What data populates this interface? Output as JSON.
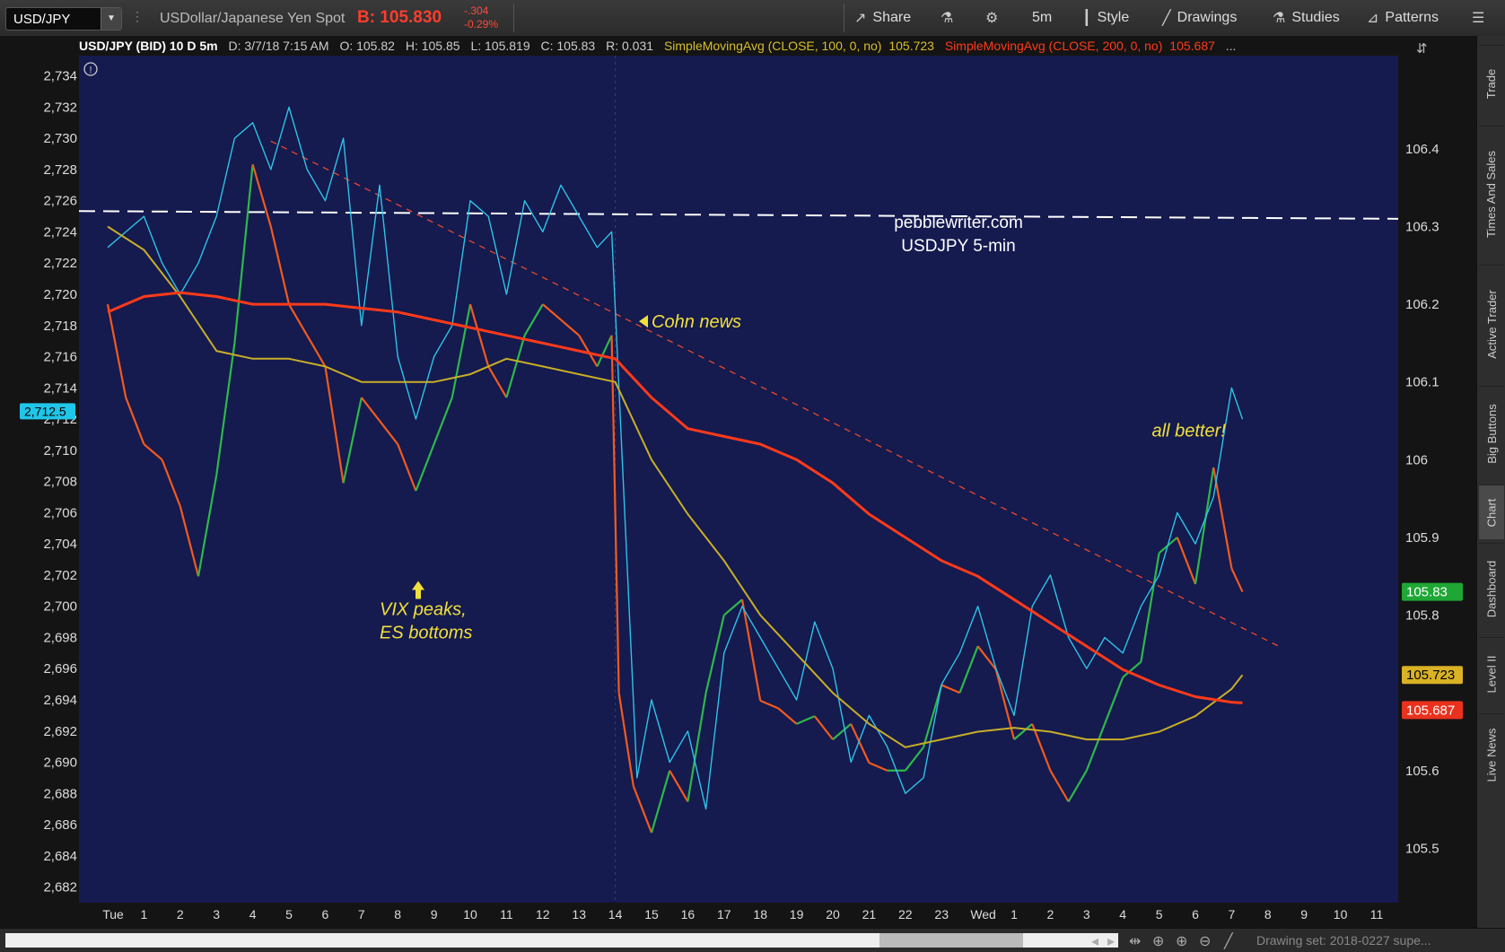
{
  "toolbar": {
    "symbol": "USD/JPY",
    "description": "USDollar/Japanese Yen Spot",
    "bid": "B: 105.830",
    "change": "-.304",
    "change_pct": "-0.29%",
    "share_label": "Share",
    "timeframe_label": "5m",
    "style_label": "Style",
    "drawings_label": "Drawings",
    "studies_label": "Studies",
    "patterns_label": "Patterns"
  },
  "header": {
    "title": "USD/JPY (BID) 10 D 5m",
    "date": "D: 3/7/18 7:15 AM",
    "open": "O: 105.82",
    "high": "H: 105.85",
    "low": "L: 105.819",
    "close": "C: 105.83",
    "range": "R: 0.031",
    "sma100_label": "SimpleMovingAvg (CLOSE, 100, 0, no)",
    "sma100_value": "105.723",
    "sma200_label": "SimpleMovingAvg (CLOSE, 200, 0, no)",
    "sma200_value": "105.687",
    "more": "..."
  },
  "right_tabs": [
    "Trade",
    "Times And Sales",
    "Active Trader",
    "Big Buttons",
    "Chart",
    "Dashboard",
    "Level II",
    "Live News"
  ],
  "bottom": {
    "drawing_set": "Drawing set: 2018-0227 supe..."
  },
  "colors": {
    "plot_bg": "#151A4F",
    "up_candle": "#2DB84A",
    "down_candle": "#F25A1E",
    "es_line": "#2EC3E6",
    "sma100": "#C9AE27",
    "sma200": "#FF3A1A",
    "trendline": "#E84A2A",
    "annotation": "#F0E03A",
    "price_badge_green": "#1FA735",
    "price_badge_gold": "#D9B225",
    "price_badge_red": "#E8321E",
    "left_badge": "#20C6E8"
  },
  "chart_data": {
    "type": "line",
    "title": "USD/JPY (BID) 10 D 5m",
    "x_tick_labels": [
      "Tue",
      "1",
      "2",
      "3",
      "4",
      "5",
      "6",
      "7",
      "8",
      "9",
      "10",
      "11",
      "12",
      "13",
      "14",
      "15",
      "16",
      "17",
      "18",
      "19",
      "20",
      "21",
      "22",
      "23",
      "Wed",
      "1",
      "2",
      "3",
      "4",
      "5",
      "6",
      "7",
      "8",
      "9",
      "10",
      "11"
    ],
    "right_axis": {
      "ylim": [
        105.43,
        106.52
      ],
      "ticks": [
        "106.4",
        "106.3",
        "106.2",
        "106.1",
        "106",
        "105.9",
        "105.8",
        "105.6",
        "105.5"
      ]
    },
    "left_axis": {
      "ylim": [
        2681.0,
        2735.3
      ],
      "ticks": [
        "2,734",
        "2,732",
        "2,730",
        "2,728",
        "2,726",
        "2,724",
        "2,722",
        "2,720",
        "2,718",
        "2,716",
        "2,714",
        "2,712",
        "2,710",
        "2,708",
        "2,706",
        "2,704",
        "2,702",
        "2,700",
        "2,698",
        "2,696",
        "2,694",
        "2,692",
        "2,690",
        "2,688",
        "2,686",
        "2,684",
        "2,682"
      ]
    },
    "series": [
      {
        "name": "USD/JPY (BID)",
        "axis": "right",
        "x": [
          0,
          0.5,
          1,
          1.5,
          2,
          2.5,
          3,
          3.5,
          4,
          4.5,
          5,
          5.5,
          6,
          6.5,
          7,
          7.5,
          8,
          8.5,
          9,
          9.5,
          10,
          10.5,
          11,
          11.5,
          12,
          12.5,
          13,
          13.5,
          13.9,
          14.1,
          14.5,
          15,
          15.5,
          16,
          16.5,
          17,
          17.5,
          18,
          18.5,
          19,
          19.5,
          20,
          20.5,
          21,
          21.5,
          22,
          22.5,
          23,
          23.5,
          24,
          24.5,
          25,
          25.5,
          26,
          26.5,
          27,
          27.5,
          28,
          28.5,
          29,
          29.5,
          30,
          30.5,
          31,
          31.3
        ],
        "y": [
          106.2,
          106.08,
          106.02,
          106.0,
          105.94,
          105.85,
          105.98,
          106.15,
          106.38,
          106.3,
          106.2,
          106.16,
          106.12,
          105.97,
          106.08,
          106.05,
          106.02,
          105.96,
          106.02,
          106.08,
          106.2,
          106.12,
          106.08,
          106.16,
          106.2,
          106.18,
          106.16,
          106.12,
          106.16,
          105.7,
          105.58,
          105.52,
          105.6,
          105.56,
          105.7,
          105.8,
          105.82,
          105.69,
          105.68,
          105.66,
          105.67,
          105.64,
          105.66,
          105.61,
          105.6,
          105.6,
          105.63,
          105.71,
          105.7,
          105.76,
          105.73,
          105.64,
          105.66,
          105.6,
          105.56,
          105.6,
          105.66,
          105.72,
          105.74,
          105.88,
          105.9,
          105.84,
          105.99,
          105.86,
          105.83
        ]
      },
      {
        "name": "ES",
        "axis": "left",
        "x": [
          0,
          0.5,
          1,
          1.5,
          2,
          2.5,
          3,
          3.5,
          4,
          4.5,
          5,
          5.5,
          6,
          6.5,
          7,
          7.5,
          8,
          8.5,
          9,
          9.5,
          10,
          10.5,
          11,
          11.5,
          12,
          12.5,
          13,
          13.5,
          13.9,
          14.6,
          15,
          15.5,
          16,
          16.5,
          17,
          17.5,
          18,
          18.5,
          19,
          19.5,
          20,
          20.5,
          21,
          21.5,
          22,
          22.5,
          23,
          23.5,
          24,
          24.5,
          25,
          25.5,
          26,
          26.5,
          27,
          27.5,
          28,
          28.5,
          29,
          29.5,
          30,
          30.5,
          31,
          31.3
        ],
        "y": [
          2723,
          2724,
          2725,
          2722,
          2720,
          2722,
          2725,
          2730,
          2731,
          2728,
          2732,
          2728,
          2726,
          2730,
          2718,
          2727,
          2716,
          2712,
          2716,
          2718,
          2726,
          2725,
          2720,
          2726,
          2724,
          2727,
          2725,
          2723,
          2724,
          2689,
          2694,
          2690,
          2692,
          2687,
          2697,
          2700,
          2698,
          2696,
          2694,
          2699,
          2696,
          2690,
          2693,
          2691,
          2688,
          2689,
          2695,
          2697,
          2700,
          2696,
          2693,
          2700,
          2702,
          2698,
          2696,
          2698,
          2697,
          2700,
          2702,
          2706,
          2704,
          2707,
          2714,
          2712
        ]
      },
      {
        "name": "SimpleMovingAvg (CLOSE, 100, 0, no)",
        "axis": "right",
        "x": [
          0,
          1,
          2,
          3,
          4,
          5,
          6,
          7,
          8,
          9,
          10,
          11,
          12,
          13,
          14,
          15,
          16,
          17,
          18,
          19,
          20,
          21,
          22,
          23,
          24,
          25,
          26,
          27,
          28,
          29,
          30,
          31,
          31.3
        ],
        "y": [
          106.3,
          106.27,
          106.21,
          106.14,
          106.13,
          106.13,
          106.12,
          106.1,
          106.1,
          106.1,
          106.11,
          106.13,
          106.12,
          106.11,
          106.1,
          106.0,
          105.93,
          105.87,
          105.8,
          105.75,
          105.7,
          105.66,
          105.63,
          105.64,
          105.65,
          105.655,
          105.65,
          105.64,
          105.64,
          105.65,
          105.67,
          105.705,
          105.723
        ]
      },
      {
        "name": "SimpleMovingAvg (CLOSE, 200, 0, no)",
        "axis": "right",
        "x": [
          0,
          1,
          2,
          3,
          4,
          5,
          6,
          7,
          8,
          9,
          10,
          11,
          12,
          13,
          14,
          15,
          16,
          17,
          18,
          19,
          20,
          21,
          22,
          23,
          24,
          25,
          26,
          27,
          28,
          29,
          30,
          31,
          31.3
        ],
        "y": [
          106.19,
          106.21,
          106.215,
          106.21,
          106.2,
          106.2,
          106.2,
          106.195,
          106.19,
          106.18,
          106.17,
          106.16,
          106.15,
          106.14,
          106.13,
          106.08,
          106.04,
          106.03,
          106.02,
          106.0,
          105.97,
          105.93,
          105.9,
          105.87,
          105.85,
          105.82,
          105.79,
          105.76,
          105.73,
          105.71,
          105.695,
          105.688,
          105.687
        ]
      }
    ],
    "horizontal_line": {
      "axis": "right",
      "y_start": 106.32,
      "y_end": 106.31,
      "style": "dashed"
    },
    "trendline": {
      "axis": "right",
      "x_start": 4.5,
      "y_start": 106.41,
      "x_end": 32.3,
      "y_end": 105.76,
      "style": "dashed"
    },
    "vertical_marker_x": 14,
    "annotations": [
      {
        "text": "Cohn news",
        "x": 15.0,
        "y": 106.17
      },
      {
        "text": "VIX peaks,",
        "x": 7.5,
        "y": 105.8
      },
      {
        "text": "ES bottoms",
        "x": 7.5,
        "y": 105.77
      },
      {
        "text": "all better!",
        "x": 28.8,
        "y": 106.03
      }
    ],
    "watermark": [
      "pebblewriter.com",
      "USDJPY 5-min"
    ],
    "price_badges": [
      {
        "text": "105.83",
        "y": 105.83,
        "color": "green"
      },
      {
        "text": "105.723",
        "y": 105.723,
        "color": "gold"
      },
      {
        "text": "105.687",
        "y": 105.687,
        "color": "red"
      }
    ],
    "left_badge": {
      "text": "2,712.5",
      "y": 2712.5
    },
    "grid": false,
    "legend": "none"
  }
}
